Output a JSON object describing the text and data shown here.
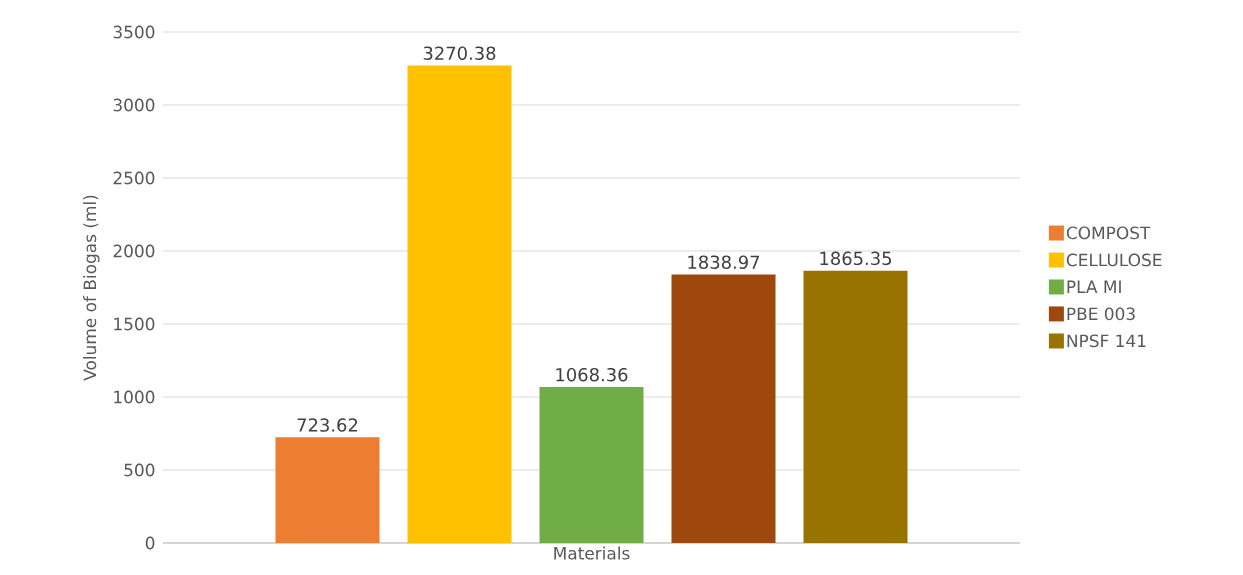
{
  "chart_data": {
    "type": "bar",
    "ylabel": "Volume of Biogas (ml)",
    "categories": [
      "Materials"
    ],
    "series": [
      {
        "name": "COMPOST",
        "color": "#ed7d31",
        "values": [
          723.62
        ],
        "value_labels": [
          "723.62"
        ]
      },
      {
        "name": "CELLULOSE",
        "color": "#ffc000",
        "values": [
          3270.38
        ],
        "value_labels": [
          "3270.38"
        ]
      },
      {
        "name": "PLA MI",
        "color": "#70ad47",
        "values": [
          1068.36
        ],
        "value_labels": [
          "1068.36"
        ]
      },
      {
        "name": "PBE 003",
        "color": "#9e480e",
        "values": [
          1838.97
        ],
        "value_labels": [
          "1838.97"
        ]
      },
      {
        "name": "NPSF 141",
        "color": "#997300",
        "values": [
          1865.35
        ],
        "value_labels": [
          "1865.35"
        ]
      }
    ],
    "ylim": [
      0,
      3500
    ],
    "yticks": [
      0,
      500,
      1000,
      1500,
      2000,
      2500,
      3000,
      3500
    ],
    "grid": "y",
    "legend": "right"
  }
}
